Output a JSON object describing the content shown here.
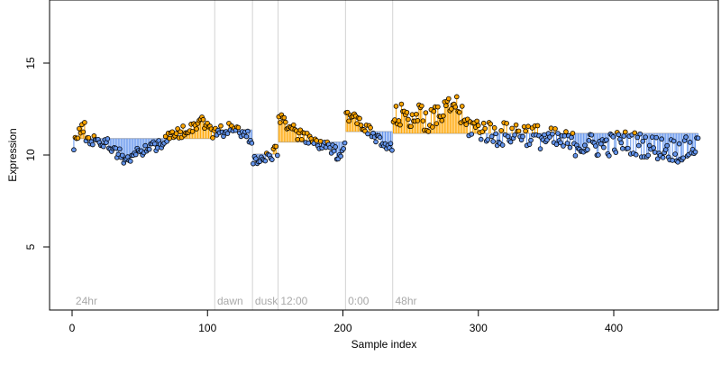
{
  "chart_data": {
    "type": "scatter",
    "title": "",
    "xlabel": "Sample index",
    "ylabel": "Expression",
    "xlim": [
      -18,
      478
    ],
    "ylim": [
      1.3,
      19.2
    ],
    "x_ticks": [
      0,
      100,
      200,
      300,
      400
    ],
    "y_ticks": [
      5,
      10,
      15
    ],
    "grid": false,
    "legend": "none",
    "colors": {
      "above_mean": "#FFA500",
      "below_mean": "#6495ED",
      "group_mean": "#AAAAAA",
      "separator": "#D3D3D3",
      "point_edge": "#000000",
      "segment_label": "#A9A9A9"
    },
    "segments": [
      {
        "label": "24hr",
        "start": 0,
        "end": 104,
        "mean": 11.2
      },
      {
        "label": "dawn",
        "start": 105,
        "end": 132,
        "mean": 11.7
      },
      {
        "label": "dusk",
        "start": 133,
        "end": 151,
        "mean": 10.3
      },
      {
        "label": "12:00",
        "start": 152,
        "end": 201,
        "mean": 11.0
      },
      {
        "label": "0:00",
        "start": 202,
        "end": 236,
        "mean": 11.6
      },
      {
        "label": "48hr",
        "start": 237,
        "end": 463,
        "mean": 11.5
      }
    ],
    "separators": [
      104.5,
      132.5,
      151.5,
      201.5,
      236.5
    ],
    "series": [
      {
        "profile": [
          [
            0,
            10.9
          ],
          [
            4,
            11.6
          ],
          [
            8,
            11.8
          ],
          [
            10,
            11.0
          ],
          [
            15,
            11.2
          ],
          [
            20,
            11.0
          ],
          [
            25,
            10.9
          ],
          [
            30,
            10.6
          ],
          [
            35,
            10.2
          ],
          [
            40,
            10.0
          ],
          [
            45,
            10.2
          ],
          [
            50,
            10.5
          ],
          [
            55,
            10.7
          ],
          [
            60,
            10.8
          ],
          [
            65,
            11.0
          ],
          [
            70,
            11.2
          ],
          [
            75,
            11.4
          ],
          [
            80,
            11.6
          ],
          [
            85,
            11.8
          ],
          [
            90,
            12.0
          ],
          [
            95,
            12.3
          ],
          [
            100,
            11.8
          ],
          [
            104,
            11.5
          ],
          [
            105,
            11.5
          ],
          [
            112,
            11.7
          ],
          [
            118,
            11.8
          ],
          [
            125,
            11.5
          ],
          [
            132,
            11.2
          ],
          [
            133,
            10.0
          ],
          [
            140,
            9.9
          ],
          [
            145,
            10.2
          ],
          [
            151,
            10.5
          ],
          [
            152,
            12.5
          ],
          [
            158,
            12.1
          ],
          [
            165,
            11.5
          ],
          [
            172,
            11.2
          ],
          [
            178,
            11.0
          ],
          [
            185,
            10.8
          ],
          [
            192,
            10.5
          ],
          [
            196,
            10.3
          ],
          [
            201,
            10.8
          ],
          [
            202,
            12.7
          ],
          [
            206,
            12.4
          ],
          [
            212,
            12.2
          ],
          [
            218,
            11.7
          ],
          [
            224,
            11.2
          ],
          [
            230,
            10.8
          ],
          [
            236,
            10.6
          ],
          [
            237,
            12.3
          ],
          [
            245,
            12.6
          ],
          [
            255,
            12.5
          ],
          [
            265,
            12.2
          ],
          [
            275,
            12.7
          ],
          [
            283,
            13.3
          ],
          [
            290,
            12.0
          ],
          [
            300,
            11.8
          ],
          [
            315,
            11.4
          ],
          [
            330,
            11.6
          ],
          [
            350,
            11.2
          ],
          [
            370,
            10.9
          ],
          [
            390,
            10.8
          ],
          [
            410,
            11.0
          ],
          [
            430,
            10.7
          ],
          [
            450,
            10.5
          ],
          [
            463,
            10.8
          ]
        ]
      }
    ]
  },
  "labels": {
    "x_tick_0": "0",
    "x_tick_100": "100",
    "x_tick_200": "200",
    "x_tick_300": "300",
    "x_tick_400": "400",
    "y_tick_5": "5",
    "y_tick_10": "10",
    "y_tick_15": "15"
  }
}
